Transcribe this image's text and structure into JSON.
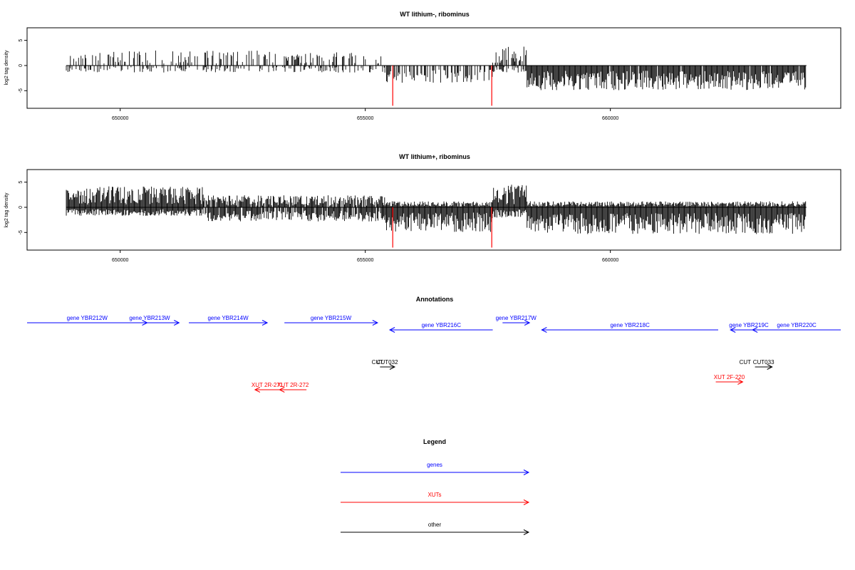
{
  "chart_data": [
    {
      "type": "bar",
      "title": "WT lithium-, ribominus",
      "ylabel": "log2 tag density",
      "xlim": [
        648100,
        664700
      ],
      "ylim": [
        -8.5,
        7.5
      ],
      "x_ticks": [
        650000,
        655000,
        660000
      ],
      "x_tick_labels": [
        "650000",
        "655000",
        "660000"
      ],
      "y_ticks": [
        -5,
        0,
        5
      ],
      "y_tick_labels": [
        "-5",
        "0",
        "5"
      ],
      "segments": [
        {
          "x_start": 648900,
          "x_end": 655400,
          "plus_mean": 2.0,
          "minus_mean": 1.0,
          "density": 0.35
        },
        {
          "x_start": 655400,
          "x_end": 657600,
          "plus_mean": 0.0,
          "minus_mean": 2.5,
          "density": 0.5
        },
        {
          "x_start": 657600,
          "x_end": 658300,
          "plus_mean": 2.5,
          "minus_mean": 1.0,
          "density": 0.6
        },
        {
          "x_start": 658300,
          "x_end": 664000,
          "plus_mean": 0.0,
          "minus_mean": 3.5,
          "density": 0.95
        }
      ],
      "highlights": [
        {
          "x": 655560,
          "value": -8.0,
          "color": "#ff0000"
        },
        {
          "x": 657580,
          "value": -8.0,
          "color": "#ff0000"
        }
      ]
    },
    {
      "type": "bar",
      "title": "WT lithium+, ribominus",
      "ylabel": "log2 tag density",
      "xlim": [
        648100,
        664700
      ],
      "ylim": [
        -8.5,
        7.5
      ],
      "x_ticks": [
        650000,
        655000,
        660000
      ],
      "x_tick_labels": [
        "650000",
        "655000",
        "660000"
      ],
      "y_ticks": [
        -5,
        0,
        5
      ],
      "y_tick_labels": [
        "-5",
        "0",
        "5"
      ],
      "segments": [
        {
          "x_start": 648900,
          "x_end": 651700,
          "plus_mean": 2.8,
          "minus_mean": 1.2,
          "density": 1.0
        },
        {
          "x_start": 651700,
          "x_end": 655400,
          "plus_mean": 1.6,
          "minus_mean": 2.0,
          "density": 0.9
        },
        {
          "x_start": 655400,
          "x_end": 657600,
          "plus_mean": 0.8,
          "minus_mean": 3.5,
          "density": 1.0
        },
        {
          "x_start": 657600,
          "x_end": 658300,
          "plus_mean": 3.0,
          "minus_mean": 1.5,
          "density": 1.0
        },
        {
          "x_start": 658300,
          "x_end": 664000,
          "plus_mean": 0.8,
          "minus_mean": 3.8,
          "density": 1.0
        }
      ],
      "highlights": [
        {
          "x": 655560,
          "value": -8.0,
          "color": "#ff0000"
        },
        {
          "x": 657580,
          "value": -8.0,
          "color": "#ff0000"
        }
      ]
    }
  ],
  "annotations": {
    "title": "Annotations",
    "items": [
      {
        "label": "gene YBR212W",
        "x1": 648100,
        "x2": 650550,
        "strand": "+",
        "row": 0,
        "color": "#0000ff"
      },
      {
        "label": "gene YBR213W",
        "x1": 650000,
        "x2": 651200,
        "strand": "+",
        "row": 0,
        "color": "#0000ff"
      },
      {
        "label": "gene YBR214W",
        "x1": 651400,
        "x2": 653000,
        "strand": "+",
        "row": 0,
        "color": "#0000ff"
      },
      {
        "label": "gene YBR215W",
        "x1": 653350,
        "x2": 655250,
        "strand": "+",
        "row": 0,
        "color": "#0000ff"
      },
      {
        "label": "gene YBR216C",
        "x1": 655500,
        "x2": 657600,
        "strand": "-",
        "row": 1,
        "color": "#0000ff"
      },
      {
        "label": "gene YBR217W",
        "x1": 657800,
        "x2": 658350,
        "strand": "+",
        "row": 0,
        "color": "#0000ff"
      },
      {
        "label": "gene YBR218C",
        "x1": 658600,
        "x2": 662200,
        "strand": "-",
        "row": 1,
        "color": "#0000ff"
      },
      {
        "label": "gene YBR219C",
        "x1": 662450,
        "x2": 663200,
        "strand": "-",
        "row": 1,
        "color": "#0000ff"
      },
      {
        "label": "gene YBR220C",
        "x1": 662900,
        "x2": 664700,
        "strand": "-",
        "row": 1,
        "color": "#0000ff"
      },
      {
        "label": "CUT",
        "x1": 655250,
        "x2": 655250,
        "strand": "none",
        "row": 2,
        "color": "#000000"
      },
      {
        "label": "CUT032",
        "x1": 655300,
        "x2": 655600,
        "strand": "+",
        "row": 2,
        "color": "#000000"
      },
      {
        "label": "CUT",
        "x1": 662750,
        "x2": 662750,
        "strand": "none",
        "row": 2,
        "color": "#000000"
      },
      {
        "label": "CUT033",
        "x1": 662950,
        "x2": 663300,
        "strand": "+",
        "row": 2,
        "color": "#000000"
      },
      {
        "label": "XUT 2R-271",
        "x1": 652750,
        "x2": 653250,
        "strand": "-",
        "row": 4,
        "color": "#ff0000"
      },
      {
        "label": "XUT 2R-272",
        "x1": 653250,
        "x2": 653800,
        "strand": "-",
        "row": 4,
        "color": "#ff0000"
      },
      {
        "label": "XUT 2F-220",
        "x1": 662150,
        "x2": 662700,
        "strand": "+",
        "row": 3,
        "color": "#ff0000"
      }
    ]
  },
  "legend": {
    "title": "Legend",
    "items": [
      {
        "label": "genes",
        "color": "#0000ff"
      },
      {
        "label": "XUTs",
        "color": "#ff0000"
      },
      {
        "label": "other",
        "color": "#000000"
      }
    ]
  }
}
